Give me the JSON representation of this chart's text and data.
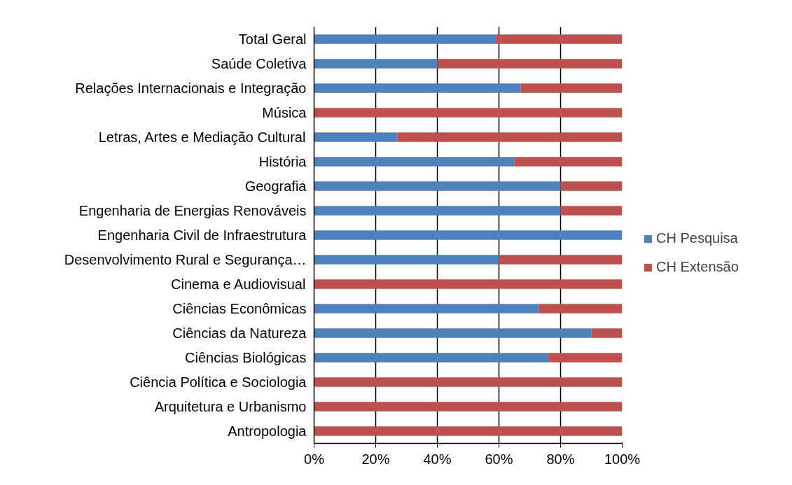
{
  "chart_data": {
    "type": "bar",
    "orientation": "horizontal",
    "stacked": true,
    "categories": [
      "Total Geral",
      "Saúde Coletiva",
      "Relações Internacionais e Integração",
      "Música",
      "Letras, Artes e Mediação Cultural",
      "História",
      "Geografia",
      "Engenharia de Energias Renováveis",
      "Engenharia Civil de Infraestrutura",
      "Desenvolvimento Rural e Segurança…",
      "Cinema e Audiovisual",
      "Ciências Econômicas",
      "Ciências da Natureza",
      "Ciências Biológicas",
      "Ciência Política e Sociologia",
      "Arquitetura e Urbanismo",
      "Antropologia"
    ],
    "series": [
      {
        "name": "CH Pesquisa",
        "color": "#4f81bd",
        "values": [
          59,
          40,
          67,
          0,
          27,
          65,
          80,
          80,
          100,
          60,
          0,
          73,
          90,
          76,
          0,
          0,
          0
        ]
      },
      {
        "name": "CH Extensão",
        "color": "#c0504d",
        "values": [
          41,
          60,
          33,
          100,
          73,
          35,
          20,
          20,
          0,
          40,
          100,
          27,
          10,
          24,
          100,
          100,
          100
        ]
      }
    ],
    "xlim": [
      0,
      100
    ],
    "xticks": [
      {
        "value": 0,
        "label": "0%"
      },
      {
        "value": 20,
        "label": "20%"
      },
      {
        "value": 40,
        "label": "40%"
      },
      {
        "value": 60,
        "label": "60%"
      },
      {
        "value": 80,
        "label": "80%"
      },
      {
        "value": 100,
        "label": "100%"
      }
    ],
    "grid": "x",
    "legend": "right"
  }
}
